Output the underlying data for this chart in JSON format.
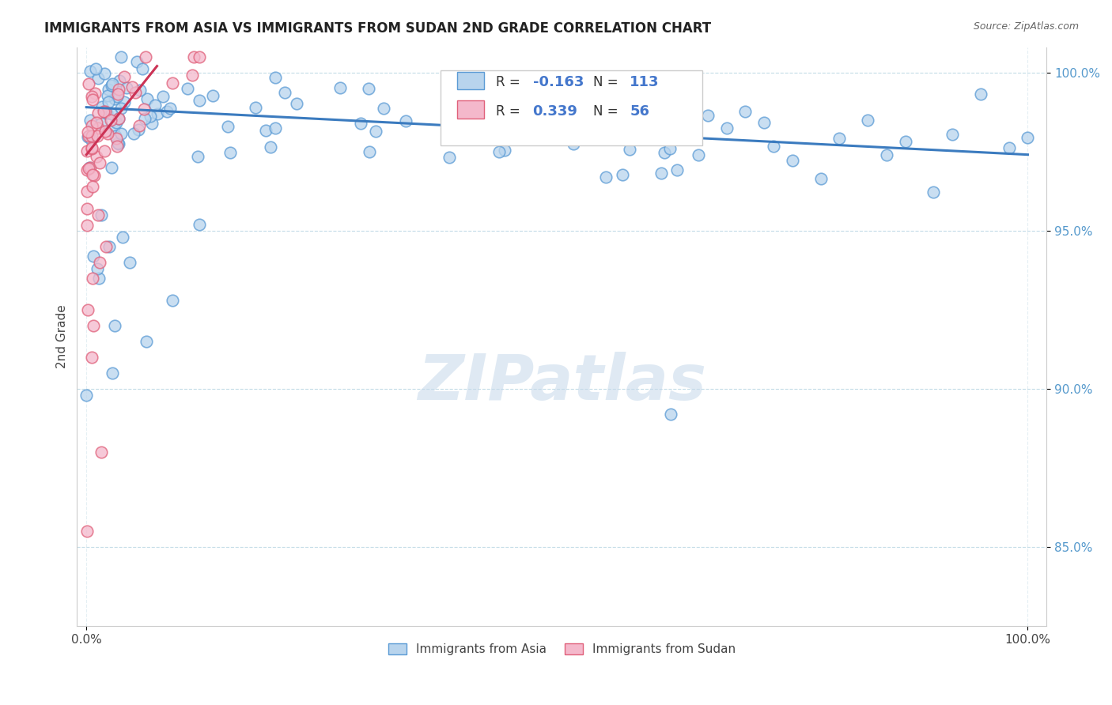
{
  "title": "IMMIGRANTS FROM ASIA VS IMMIGRANTS FROM SUDAN 2ND GRADE CORRELATION CHART",
  "source": "Source: ZipAtlas.com",
  "ylabel": "2nd Grade",
  "r_asia": -0.163,
  "n_asia": 113,
  "r_sudan": 0.339,
  "n_sudan": 56,
  "color_asia_fill": "#b8d4ed",
  "color_asia_edge": "#5b9bd5",
  "color_sudan_fill": "#f4b8cb",
  "color_sudan_edge": "#e0607a",
  "color_asia_line": "#3b7bbf",
  "color_sudan_line": "#cc3355",
  "watermark": "ZIPatlas",
  "legend_labels": [
    "Immigrants from Asia",
    "Immigrants from Sudan"
  ],
  "xlim": [
    -0.01,
    1.02
  ],
  "ylim": [
    0.825,
    1.008
  ],
  "yticks": [
    0.85,
    0.9,
    0.95,
    1.0
  ],
  "ytick_labels": [
    "85.0%",
    "90.0%",
    "95.0%",
    "100.0%"
  ],
  "asia_line_x0": 0.0,
  "asia_line_x1": 1.0,
  "asia_line_y0": 0.989,
  "asia_line_y1": 0.974,
  "sudan_line_x0": 0.0,
  "sudan_line_x1": 0.075,
  "sudan_line_y0": 0.974,
  "sudan_line_y1": 1.002
}
